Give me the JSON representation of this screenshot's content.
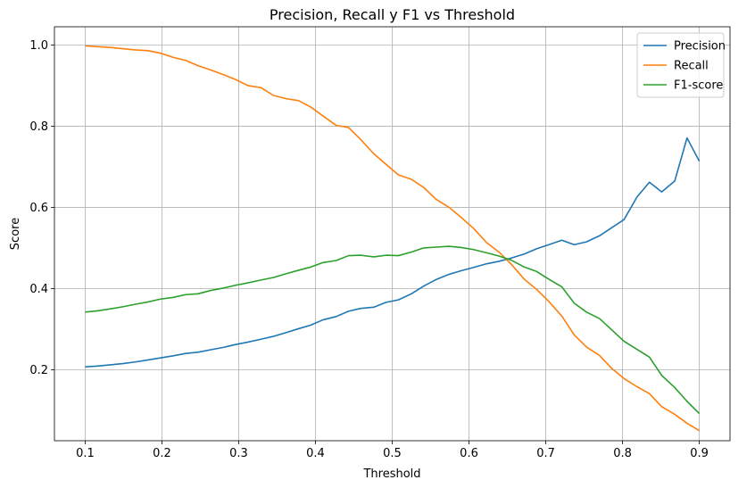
{
  "chart_data": {
    "type": "line",
    "title": "Precision, Recall y F1 vs Threshold",
    "xlabel": "Threshold",
    "ylabel": "Score",
    "xlim": [
      0.06,
      0.94
    ],
    "ylim": [
      0.025,
      1.045
    ],
    "xticks": [
      0.1,
      0.2,
      0.3,
      0.4,
      0.5,
      0.6,
      0.7,
      0.8,
      0.9
    ],
    "xtick_labels": [
      "0.1",
      "0.2",
      "0.3",
      "0.4",
      "0.5",
      "0.6",
      "0.7",
      "0.8",
      "0.9"
    ],
    "yticks": [
      0.2,
      0.4,
      0.6,
      0.8,
      1.0
    ],
    "ytick_labels": [
      "0.2",
      "0.4",
      "0.6",
      "0.8",
      "1.0"
    ],
    "grid": true,
    "legend_position": "top-right",
    "x": [
      0.1,
      0.116,
      0.133,
      0.149,
      0.165,
      0.182,
      0.198,
      0.214,
      0.231,
      0.247,
      0.263,
      0.28,
      0.296,
      0.312,
      0.329,
      0.345,
      0.361,
      0.378,
      0.394,
      0.41,
      0.427,
      0.443,
      0.459,
      0.476,
      0.492,
      0.508,
      0.525,
      0.541,
      0.557,
      0.574,
      0.59,
      0.606,
      0.623,
      0.639,
      0.655,
      0.672,
      0.688,
      0.704,
      0.721,
      0.737,
      0.753,
      0.77,
      0.786,
      0.802,
      0.819,
      0.835,
      0.851,
      0.868,
      0.884,
      0.9
    ],
    "series": [
      {
        "name": "Precision",
        "color": "#1f77b4",
        "values": [
          0.207,
          0.209,
          0.212,
          0.215,
          0.219,
          0.224,
          0.229,
          0.234,
          0.24,
          0.243,
          0.249,
          0.255,
          0.262,
          0.268,
          0.275,
          0.282,
          0.291,
          0.301,
          0.31,
          0.323,
          0.331,
          0.344,
          0.351,
          0.354,
          0.366,
          0.372,
          0.387,
          0.406,
          0.422,
          0.435,
          0.444,
          0.452,
          0.461,
          0.467,
          0.475,
          0.485,
          0.498,
          0.508,
          0.519,
          0.508,
          0.515,
          0.53,
          0.55,
          0.57,
          0.626,
          0.662,
          0.638,
          0.665,
          0.771,
          0.714
        ]
      },
      {
        "name": "Recall",
        "color": "#ff7f0e",
        "values": [
          0.998,
          0.996,
          0.994,
          0.991,
          0.988,
          0.986,
          0.98,
          0.97,
          0.962,
          0.949,
          0.939,
          0.927,
          0.915,
          0.9,
          0.895,
          0.876,
          0.868,
          0.863,
          0.847,
          0.825,
          0.802,
          0.797,
          0.767,
          0.732,
          0.706,
          0.68,
          0.669,
          0.649,
          0.62,
          0.6,
          0.575,
          0.548,
          0.513,
          0.49,
          0.46,
          0.423,
          0.398,
          0.368,
          0.332,
          0.286,
          0.256,
          0.235,
          0.203,
          0.178,
          0.158,
          0.141,
          0.109,
          0.09,
          0.068,
          0.05
        ]
      },
      {
        "name": "F1-score",
        "color": "#2ca02c",
        "values": [
          0.342,
          0.345,
          0.35,
          0.355,
          0.361,
          0.367,
          0.374,
          0.378,
          0.385,
          0.387,
          0.395,
          0.401,
          0.408,
          0.414,
          0.421,
          0.427,
          0.436,
          0.445,
          0.453,
          0.464,
          0.469,
          0.481,
          0.482,
          0.478,
          0.482,
          0.481,
          0.49,
          0.5,
          0.502,
          0.504,
          0.501,
          0.496,
          0.488,
          0.48,
          0.47,
          0.453,
          0.442,
          0.423,
          0.404,
          0.364,
          0.342,
          0.326,
          0.298,
          0.27,
          0.25,
          0.231,
          0.186,
          0.156,
          0.122,
          0.092
        ]
      }
    ]
  }
}
